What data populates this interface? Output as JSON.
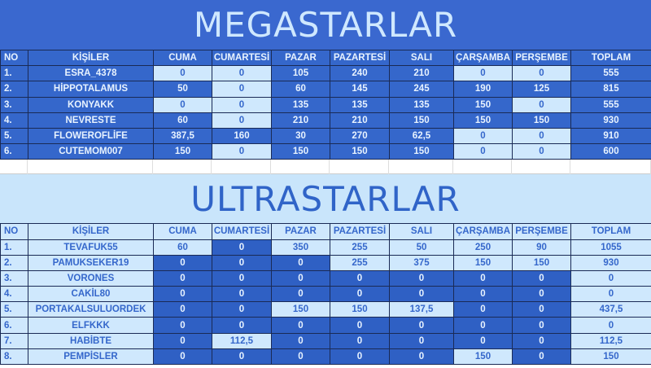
{
  "columns": [
    "NO",
    "KİŞİLER",
    "CUMA",
    "CUMARTESİ",
    "PAZAR",
    "PAZARTESİ",
    "SALI",
    "ÇARŞAMBA",
    "PERŞEMBE",
    "TOPLAM"
  ],
  "colors": {
    "dark_blue": "#3567cb",
    "light_blue": "#cfe8fd"
  },
  "mega": {
    "title": "MEGASTARLAR",
    "rows": [
      [
        "1.",
        "ESRA_4378",
        "0",
        "0",
        "105",
        "240",
        "210",
        "0",
        "0",
        "555"
      ],
      [
        "2.",
        "HİPPOTALAMUS",
        "50",
        "0",
        "60",
        "145",
        "245",
        "190",
        "125",
        "815"
      ],
      [
        "3.",
        "KONYAKK",
        "0",
        "0",
        "135",
        "135",
        "135",
        "150",
        "0",
        "555"
      ],
      [
        "4.",
        "NEVRESTE",
        "60",
        "0",
        "210",
        "210",
        "150",
        "150",
        "150",
        "930"
      ],
      [
        "5.",
        "FLOWEROFLİFE",
        "387,5",
        "160",
        "30",
        "270",
        "62,5",
        "0",
        "0",
        "910"
      ],
      [
        "6.",
        "CUTEMOM007",
        "150",
        "0",
        "150",
        "150",
        "150",
        "0",
        "0",
        "600"
      ]
    ]
  },
  "ultra": {
    "title": "ULTRASTARLAR",
    "rows": [
      [
        "1.",
        "TEVAFUK55",
        "60",
        "0",
        "350",
        "255",
        "50",
        "250",
        "90",
        "1055"
      ],
      [
        "2.",
        "PAMUKSEKER19",
        "0",
        "0",
        "0",
        "255",
        "375",
        "150",
        "150",
        "930"
      ],
      [
        "3.",
        "VORONES",
        "0",
        "0",
        "0",
        "0",
        "0",
        "0",
        "0",
        "0"
      ],
      [
        "4.",
        "CAKİL80",
        "0",
        "0",
        "0",
        "0",
        "0",
        "0",
        "0",
        "0"
      ],
      [
        "5.",
        "PORTAKALSULUORDEK",
        "0",
        "0",
        "150",
        "150",
        "137,5",
        "0",
        "0",
        "437,5"
      ],
      [
        "6.",
        "ELFKKK",
        "0",
        "0",
        "0",
        "0",
        "0",
        "0",
        "0",
        "0"
      ],
      [
        "7.",
        "HABİBTE",
        "0",
        "112,5",
        "0",
        "0",
        "0",
        "0",
        "0",
        "112,5"
      ],
      [
        "8.",
        "PEMPİSLER",
        "0",
        "0",
        "0",
        "0",
        "0",
        "150",
        "0",
        "150"
      ]
    ]
  }
}
